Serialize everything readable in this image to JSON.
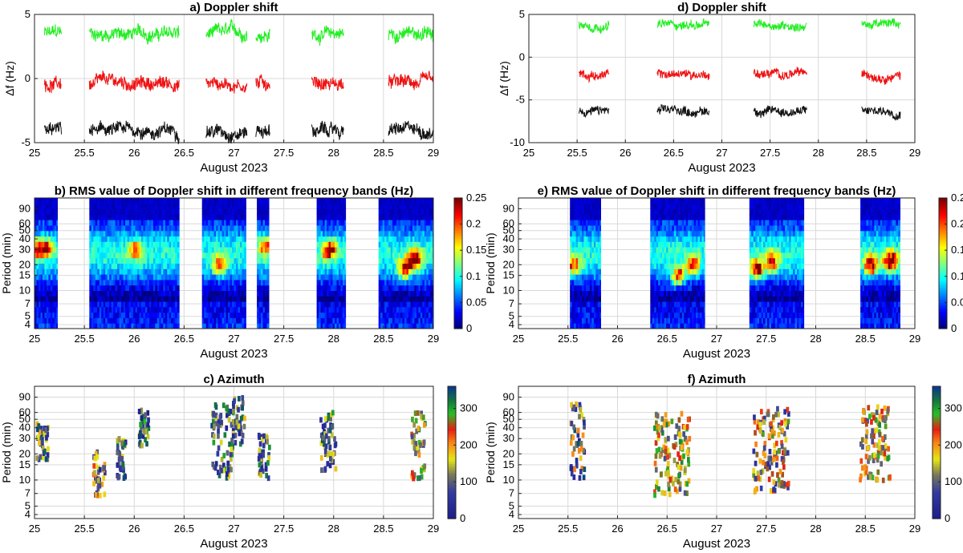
{
  "figure": {
    "colorbar_ticks_rms": [
      "0",
      "0.05",
      "0.1",
      "0.15",
      "0.2",
      "0.25"
    ],
    "colorbar_ticks_az": [
      "0",
      "100",
      "200",
      "300"
    ]
  },
  "chart_data": [
    {
      "id": "a",
      "type": "line",
      "title": "a) Doppler shift",
      "xlabel": "August 2023",
      "ylabel": "Δf (Hz)",
      "xlim": [
        25,
        29
      ],
      "ylim": [
        -5,
        5
      ],
      "xticks": [
        "25",
        "25.5",
        "26",
        "26.5",
        "27",
        "27.5",
        "28",
        "28.5",
        "29"
      ],
      "yticks": [
        "-5",
        "0",
        "5"
      ],
      "series": [
        {
          "name": "green",
          "color": "#22ee22",
          "level": 3.5
        },
        {
          "name": "red",
          "color": "#ee1111",
          "level": -0.4
        },
        {
          "name": "black",
          "color": "#111111",
          "level": -4.1
        }
      ],
      "segments": [
        [
          25.1,
          25.27
        ],
        [
          25.55,
          26.45
        ],
        [
          26.72,
          27.13
        ],
        [
          27.22,
          27.36
        ],
        [
          27.78,
          28.1
        ],
        [
          28.55,
          29.0
        ]
      ]
    },
    {
      "id": "d",
      "type": "line",
      "title": "d) Doppler shift",
      "xlabel": "August 2023",
      "ylabel": "Δf (Hz)",
      "xlim": [
        25,
        29
      ],
      "ylim": [
        -10,
        5
      ],
      "xticks": [
        "25",
        "25.5",
        "26",
        "26.5",
        "27",
        "27.5",
        "28",
        "28.5",
        "29"
      ],
      "yticks": [
        "-10",
        "-5",
        "0",
        "5"
      ],
      "series": [
        {
          "name": "green",
          "color": "#22ee22",
          "level": 3.8
        },
        {
          "name": "red",
          "color": "#ee1111",
          "level": -2.0
        },
        {
          "name": "black",
          "color": "#111111",
          "level": -6.3
        }
      ],
      "segments": [
        [
          25.52,
          25.83
        ],
        [
          26.33,
          26.87
        ],
        [
          27.33,
          27.88
        ],
        [
          28.45,
          28.85
        ]
      ]
    },
    {
      "id": "b",
      "type": "heatmap",
      "title": "b) RMS value of Doppler shift in different frequency bands (Hz)",
      "xlabel": "August 2023",
      "ylabel": "Period (min)",
      "xlim": [
        25,
        29
      ],
      "xticks": [
        "25",
        "25.5",
        "26",
        "26.5",
        "27",
        "27.5",
        "28",
        "28.5",
        "29"
      ],
      "yticks": [
        "4",
        "5",
        "7",
        "10",
        "15",
        "20",
        "30",
        "40",
        "50",
        "60",
        "90"
      ],
      "clim": [
        0,
        0.25
      ],
      "segments": [
        [
          25.0,
          25.23
        ],
        [
          25.55,
          26.45
        ],
        [
          26.68,
          27.12
        ],
        [
          27.23,
          27.35
        ],
        [
          27.83,
          28.12
        ],
        [
          28.45,
          29.0
        ]
      ],
      "hotspots": [
        [
          25.0,
          30,
          0.13
        ],
        [
          25.1,
          32,
          0.17
        ],
        [
          26.0,
          30,
          0.12
        ],
        [
          26.85,
          20,
          0.14
        ],
        [
          27.3,
          33,
          0.14
        ],
        [
          27.95,
          30,
          0.2
        ],
        [
          28.8,
          23,
          0.23
        ],
        [
          28.7,
          18,
          0.18
        ]
      ]
    },
    {
      "id": "e",
      "type": "heatmap",
      "title": "e) RMS value of Doppler shift in different frequency bands (Hz)",
      "xlabel": "August 2023",
      "ylabel": "Period (min)",
      "xlim": [
        25,
        29
      ],
      "xticks": [
        "25",
        "25.5",
        "26",
        "26.5",
        "27",
        "27.5",
        "28",
        "28.5",
        "29"
      ],
      "yticks": [
        "4",
        "5",
        "7",
        "10",
        "15",
        "20",
        "30",
        "40",
        "50",
        "60",
        "90"
      ],
      "clim": [
        0,
        0.25
      ],
      "segments": [
        [
          25.52,
          25.83
        ],
        [
          26.33,
          26.88
        ],
        [
          27.33,
          27.88
        ],
        [
          28.45,
          28.85
        ]
      ],
      "hotspots": [
        [
          25.55,
          20,
          0.15
        ],
        [
          26.6,
          15,
          0.18
        ],
        [
          26.75,
          20,
          0.15
        ],
        [
          27.4,
          18,
          0.22
        ],
        [
          27.55,
          22,
          0.16
        ],
        [
          28.55,
          20,
          0.2
        ],
        [
          28.75,
          22,
          0.24
        ]
      ]
    },
    {
      "id": "c",
      "type": "scatter",
      "title": "c) Azimuth",
      "xlabel": "August 2023",
      "ylabel": "Period (min)",
      "xlim": [
        25,
        29
      ],
      "xticks": [
        "25",
        "25.5",
        "26",
        "26.5",
        "27",
        "27.5",
        "28",
        "28.5",
        "29"
      ],
      "yticks": [
        "4",
        "5",
        "7",
        "10",
        "15",
        "20",
        "30",
        "40",
        "50",
        "60",
        "90"
      ],
      "clim": [
        0,
        360
      ],
      "clusters": [
        [
          25.08,
          28,
          0.06,
          0.22,
          80
        ],
        [
          25.65,
          11,
          0.06,
          0.3,
          130
        ],
        [
          25.88,
          18,
          0.05,
          0.25,
          60
        ],
        [
          26.1,
          40,
          0.05,
          0.22,
          40
        ],
        [
          26.9,
          28,
          0.12,
          0.45,
          60
        ],
        [
          27.05,
          55,
          0.06,
          0.35,
          70
        ],
        [
          27.3,
          18,
          0.06,
          0.28,
          60
        ],
        [
          27.95,
          28,
          0.08,
          0.35,
          60
        ],
        [
          28.85,
          25,
          0.07,
          0.4,
          200
        ]
      ]
    },
    {
      "id": "f",
      "type": "scatter",
      "title": "f) Azimuth",
      "xlabel": "August 2023",
      "ylabel": "Period (min)",
      "xlim": [
        25,
        29
      ],
      "xticks": [
        "25",
        "25.5",
        "26",
        "26.5",
        "27",
        "27.5",
        "28",
        "28.5",
        "29"
      ],
      "yticks": [
        "4",
        "5",
        "7",
        "10",
        "15",
        "20",
        "30",
        "40",
        "50",
        "60",
        "90"
      ],
      "clim": [
        0,
        360
      ],
      "clusters": [
        [
          25.6,
          28,
          0.07,
          0.45,
          90
        ],
        [
          26.55,
          20,
          0.18,
          0.5,
          200
        ],
        [
          27.55,
          22,
          0.18,
          0.5,
          160
        ],
        [
          28.6,
          26,
          0.15,
          0.45,
          200
        ]
      ]
    }
  ]
}
